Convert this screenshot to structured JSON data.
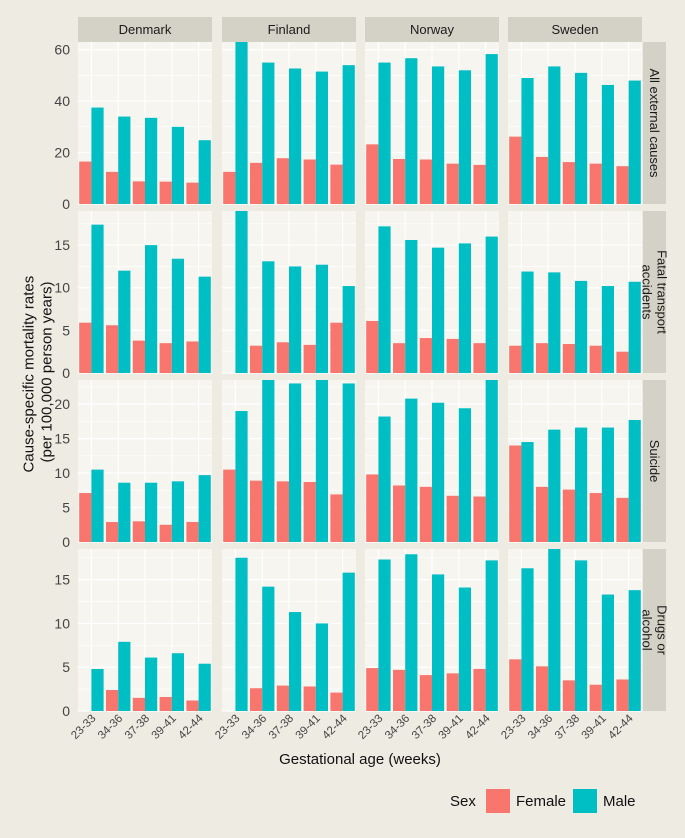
{
  "chart_data": {
    "type": "bar",
    "xlabel": "Gestational age (weeks)",
    "ylabel": [
      "Cause-specific mortality rates",
      "(per 100,000 person years)"
    ],
    "col_facets": [
      "Denmark",
      "Finland",
      "Norway",
      "Sweden"
    ],
    "row_facets": [
      {
        "label": "All external causes",
        "label_lines": [
          "All external causes"
        ],
        "ylim": [
          0,
          63
        ],
        "yticks": [
          0,
          20,
          40,
          60
        ]
      },
      {
        "label": "Fatal transport accidents",
        "label_lines": [
          "Fatal transport",
          "accidents"
        ],
        "ylim": [
          0,
          19
        ],
        "yticks": [
          0,
          5,
          10,
          15
        ]
      },
      {
        "label": "Suicide",
        "label_lines": [
          "Suicide"
        ],
        "ylim": [
          0,
          23.5
        ],
        "yticks": [
          0,
          5,
          10,
          15,
          20
        ]
      },
      {
        "label": "Drugs or alcohol",
        "label_lines": [
          "Drugs or",
          "alcohol"
        ],
        "ylim": [
          0,
          18.5
        ],
        "yticks": [
          0,
          5,
          10,
          15
        ]
      }
    ],
    "categories": [
      "23-33",
      "34-36",
      "37-38",
      "39-41",
      "42-44"
    ],
    "legend": {
      "title": "Sex",
      "position": "bottom",
      "entries": [
        "Female",
        "Male"
      ]
    },
    "colors": {
      "Female": "#f8766d",
      "Male": "#00bfc4"
    },
    "grid": true,
    "panels": [
      [
        {
          "Female": [
            16.5,
            12.5,
            8.8,
            8.7,
            8.3
          ],
          "Male": [
            37.5,
            34.0,
            33.5,
            30.0,
            24.8
          ]
        },
        {
          "Female": [
            12.5,
            16.0,
            17.8,
            17.3,
            15.3
          ],
          "Male": [
            63.0,
            55.0,
            52.7,
            51.5,
            54.0
          ]
        },
        {
          "Female": [
            23.2,
            17.5,
            17.3,
            15.7,
            15.2
          ],
          "Male": [
            55.0,
            56.7,
            53.5,
            52.0,
            58.3
          ]
        },
        {
          "Female": [
            26.2,
            18.3,
            16.3,
            15.7,
            14.7
          ],
          "Male": [
            49.0,
            53.5,
            51.0,
            46.3,
            48.0
          ]
        }
      ],
      [
        {
          "Female": [
            5.9,
            5.6,
            3.8,
            3.5,
            3.7
          ],
          "Male": [
            17.4,
            12.0,
            15.0,
            13.4,
            11.3
          ]
        },
        {
          "Female": [
            0.0,
            3.2,
            3.6,
            3.3,
            5.9
          ],
          "Male": [
            19.0,
            13.1,
            12.5,
            12.7,
            10.2
          ]
        },
        {
          "Female": [
            6.1,
            3.5,
            4.1,
            4.0,
            3.5
          ],
          "Male": [
            17.2,
            15.6,
            14.7,
            15.2,
            16.0
          ]
        },
        {
          "Female": [
            3.2,
            3.5,
            3.4,
            3.2,
            2.5
          ],
          "Male": [
            11.9,
            11.8,
            10.8,
            10.2,
            10.7
          ]
        }
      ],
      [
        {
          "Female": [
            7.1,
            2.9,
            3.0,
            2.5,
            2.9
          ],
          "Male": [
            10.5,
            8.6,
            8.6,
            8.8,
            9.7
          ]
        },
        {
          "Female": [
            10.5,
            8.9,
            8.8,
            8.7,
            6.9
          ],
          "Male": [
            19.0,
            23.5,
            23.0,
            23.5,
            23.0
          ]
        },
        {
          "Female": [
            9.8,
            8.2,
            8.0,
            6.7,
            6.6
          ],
          "Male": [
            18.2,
            20.8,
            20.2,
            19.4,
            23.5
          ]
        },
        {
          "Female": [
            14.0,
            8.0,
            7.6,
            7.1,
            6.4
          ],
          "Male": [
            14.5,
            16.3,
            16.6,
            16.6,
            17.7
          ]
        }
      ],
      [
        {
          "Female": [
            0.0,
            2.4,
            1.5,
            1.6,
            1.2
          ],
          "Male": [
            4.8,
            7.9,
            6.1,
            6.6,
            5.4
          ]
        },
        {
          "Female": [
            0.0,
            2.6,
            2.9,
            2.8,
            2.1
          ],
          "Male": [
            17.5,
            14.2,
            11.3,
            10.0,
            15.8
          ]
        },
        {
          "Female": [
            4.9,
            4.7,
            4.1,
            4.3,
            4.8
          ],
          "Male": [
            17.3,
            17.9,
            15.6,
            14.1,
            17.2
          ]
        },
        {
          "Female": [
            5.9,
            5.1,
            3.5,
            3.0,
            3.6
          ],
          "Male": [
            16.3,
            18.5,
            17.2,
            13.3,
            13.8
          ]
        }
      ]
    ]
  }
}
